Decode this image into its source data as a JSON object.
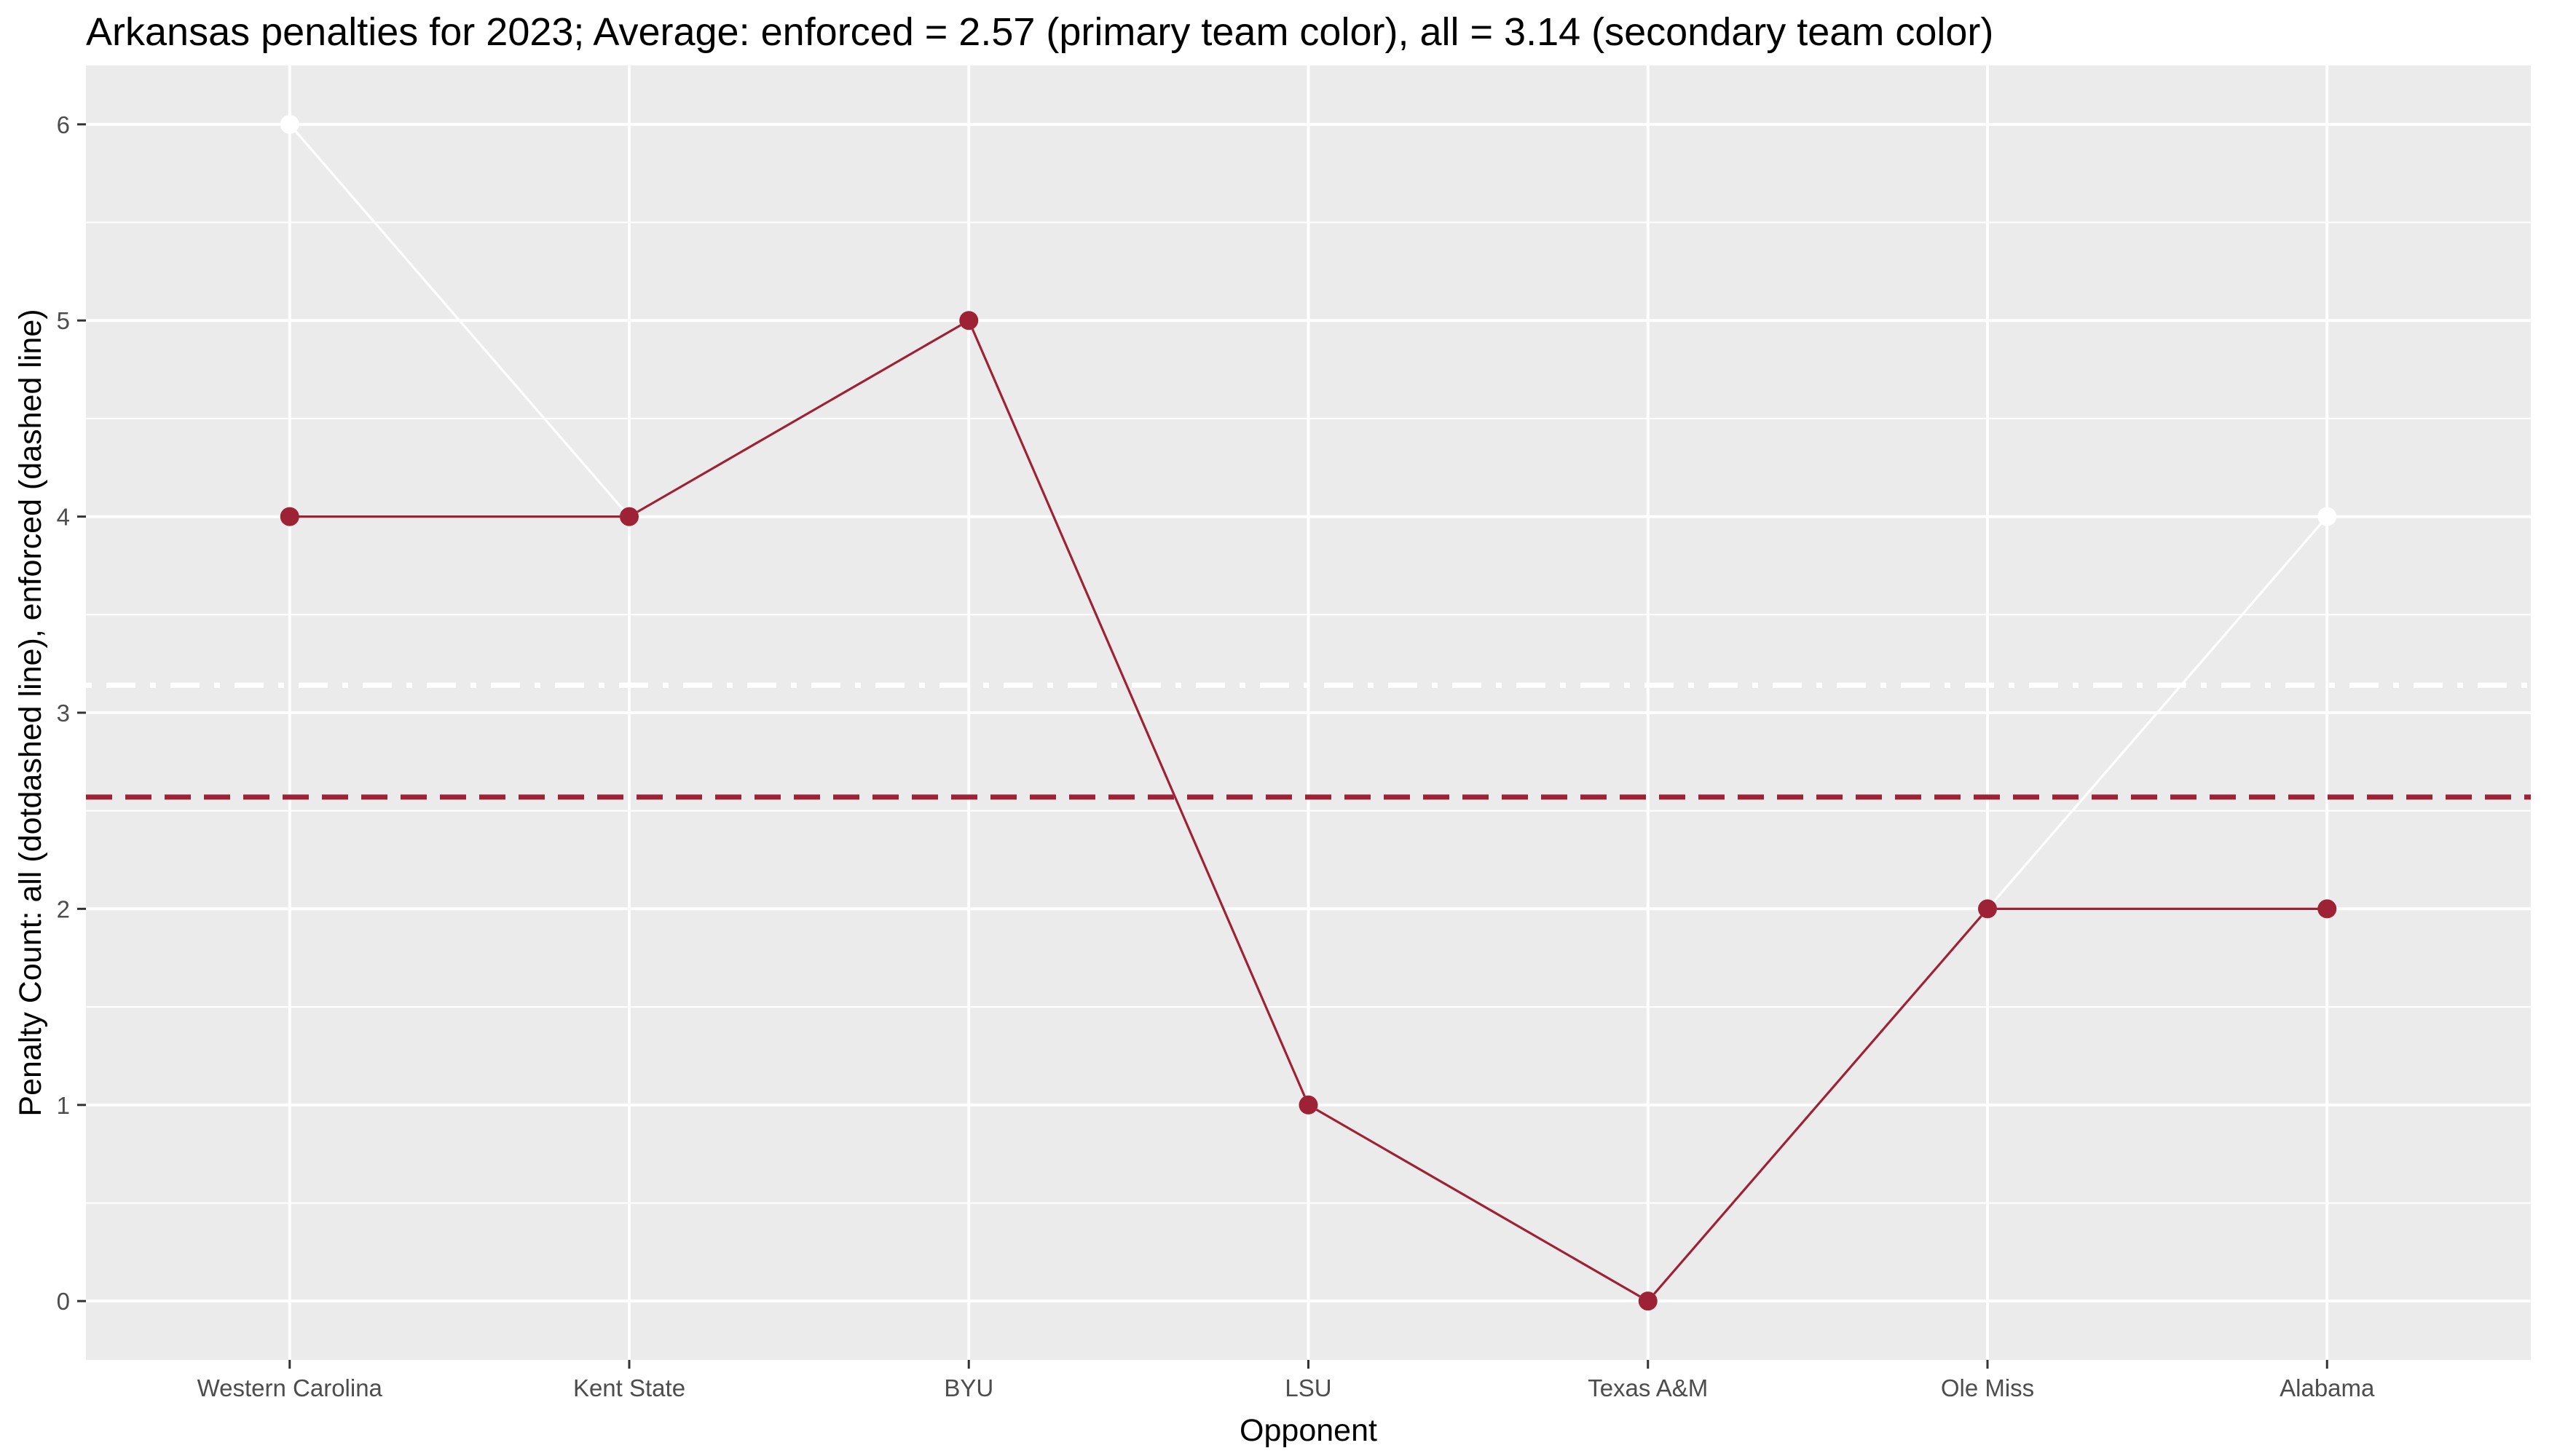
{
  "chart_data": {
    "type": "line",
    "title": "Arkansas penalties for 2023; Average: enforced = 2.57 (primary team color), all = 3.14 (secondary team color)",
    "xlabel": "Opponent",
    "ylabel": "Penalty Count: all (dotdashed line), enforced (dashed line)",
    "categories": [
      "Western Carolina",
      "Kent State",
      "BYU",
      "LSU",
      "Texas A&M",
      "Ole Miss",
      "Alabama"
    ],
    "series": [
      {
        "key": "all",
        "color": "#ffffff",
        "line_style": "solid",
        "values": [
          6,
          4,
          5,
          1,
          0,
          2,
          4
        ]
      },
      {
        "key": "enforced",
        "color": "#9d2235",
        "line_style": "solid",
        "values": [
          4,
          4,
          5,
          1,
          0,
          2,
          2
        ]
      }
    ],
    "reference_lines": [
      {
        "key": "all_average",
        "value": 3.14,
        "color": "#ffffff",
        "style": "dotdash"
      },
      {
        "key": "enforced_average",
        "value": 2.57,
        "color": "#9d2235",
        "style": "dashed"
      }
    ],
    "ylim": [
      -0.3,
      6.3
    ],
    "yticks": [
      0,
      1,
      2,
      3,
      4,
      5,
      6
    ],
    "grid": true,
    "panel_background": "#ebebeb",
    "legend": "none"
  }
}
